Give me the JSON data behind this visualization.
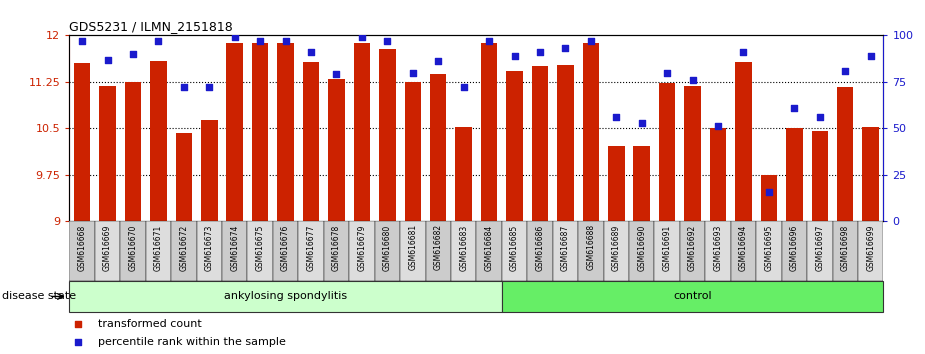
{
  "title": "GDS5231 / ILMN_2151818",
  "samples": [
    "GSM616668",
    "GSM616669",
    "GSM616670",
    "GSM616671",
    "GSM616672",
    "GSM616673",
    "GSM616674",
    "GSM616675",
    "GSM616676",
    "GSM616677",
    "GSM616678",
    "GSM616679",
    "GSM616680",
    "GSM616681",
    "GSM616682",
    "GSM616683",
    "GSM616684",
    "GSM616685",
    "GSM616686",
    "GSM616687",
    "GSM616688",
    "GSM616689",
    "GSM616690",
    "GSM616691",
    "GSM616692",
    "GSM616693",
    "GSM616694",
    "GSM616695",
    "GSM616696",
    "GSM616697",
    "GSM616698",
    "GSM616699"
  ],
  "bar_values": [
    11.55,
    11.18,
    11.24,
    11.58,
    10.43,
    10.63,
    11.87,
    11.87,
    11.87,
    11.57,
    11.3,
    11.87,
    11.78,
    11.25,
    11.37,
    10.52,
    11.87,
    11.42,
    11.5,
    11.52,
    11.87,
    10.22,
    10.21,
    11.23,
    11.19,
    10.51,
    11.57,
    9.75,
    10.5,
    10.45,
    11.17,
    10.52
  ],
  "percentile_values": [
    97,
    87,
    90,
    97,
    72,
    72,
    99,
    97,
    97,
    91,
    79,
    99,
    97,
    80,
    86,
    72,
    97,
    89,
    91,
    93,
    97,
    56,
    53,
    80,
    76,
    51,
    91,
    16,
    61,
    56,
    81,
    89
  ],
  "bar_color": "#cc2200",
  "dot_color": "#1a1acc",
  "ylim_left": [
    9.0,
    12.0
  ],
  "ylim_right": [
    0,
    100
  ],
  "yticks_left": [
    9.0,
    9.75,
    10.5,
    11.25,
    12.0
  ],
  "yticks_left_labels": [
    "9",
    "9.75",
    "10.5",
    "11.25",
    "12"
  ],
  "yticks_right": [
    0,
    25,
    50,
    75,
    100
  ],
  "yticks_right_labels": [
    "0",
    "25",
    "50",
    "75",
    "100"
  ],
  "groups": [
    {
      "label": "ankylosing spondylitis",
      "start": 0,
      "end": 16,
      "color": "#ccffcc"
    },
    {
      "label": "control",
      "start": 17,
      "end": 31,
      "color": "#66ee66"
    }
  ],
  "group_label": "disease state",
  "legend_items": [
    {
      "color": "#cc2200",
      "label": "transformed count"
    },
    {
      "color": "#1a1acc",
      "label": "percentile rank within the sample"
    }
  ],
  "xticklabel_bg": "#cccccc",
  "plot_bg": "#ffffff"
}
